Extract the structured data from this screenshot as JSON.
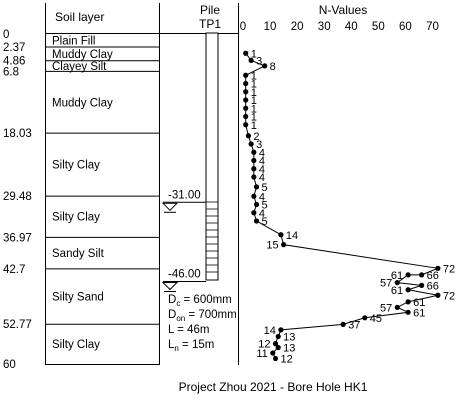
{
  "headers": {
    "soil": "Soil layer",
    "pile_line1": "Pile",
    "pile_line2": "TP1",
    "nvalues": "N-Values"
  },
  "depth_range": [
    0,
    60
  ],
  "depth_ticks": [
    "0",
    "2.37",
    "4.86",
    "6.8",
    "18.03",
    "29.48",
    "36.97",
    "42.7",
    "52.77",
    "60"
  ],
  "layers": [
    {
      "name": "Plain Fill",
      "top": 0,
      "bottom": 2.37
    },
    {
      "name": "Muddy Clay",
      "top": 2.37,
      "bottom": 4.86
    },
    {
      "name": "Clayey Silt",
      "top": 4.86,
      "bottom": 6.8
    },
    {
      "name": "Muddy Clay",
      "top": 6.8,
      "bottom": 18.03
    },
    {
      "name": "Silty Clay",
      "top": 18.03,
      "bottom": 29.48
    },
    {
      "name": "Silty Clay",
      "top": 29.48,
      "bottom": 36.97
    },
    {
      "name": "Sandy Silt",
      "top": 36.97,
      "bottom": 42.7
    },
    {
      "name": "Silty Sand",
      "top": 42.7,
      "bottom": 52.77
    },
    {
      "name": "Silty Clay",
      "top": 52.77,
      "bottom": 60
    }
  ],
  "n_axis": {
    "range": [
      0,
      75
    ],
    "ticks": [
      "0",
      "10",
      "20",
      "30",
      "40",
      "50",
      "60",
      "70"
    ]
  },
  "spt": [
    {
      "depth": 3.5,
      "n": 1,
      "label": "1",
      "side": "right"
    },
    {
      "depth": 4.8,
      "n": 3,
      "label": "3",
      "side": "right"
    },
    {
      "depth": 5.8,
      "n": 8,
      "label": "8",
      "side": "right"
    },
    {
      "depth": 7.5,
      "n": 1,
      "label": "1",
      "side": "right"
    },
    {
      "depth": 9.0,
      "n": 1,
      "label": "1",
      "side": "right"
    },
    {
      "depth": 10.5,
      "n": 1,
      "label": "1",
      "side": "right"
    },
    {
      "depth": 12.0,
      "n": 1,
      "label": "1",
      "side": "right"
    },
    {
      "depth": 13.5,
      "n": 1,
      "label": "1",
      "side": "right"
    },
    {
      "depth": 15.0,
      "n": 1,
      "label": "1",
      "side": "right"
    },
    {
      "depth": 16.5,
      "n": 1,
      "label": "1",
      "side": "right"
    },
    {
      "depth": 18.5,
      "n": 2,
      "label": "2",
      "side": "right"
    },
    {
      "depth": 20.0,
      "n": 3,
      "label": "3",
      "side": "right"
    },
    {
      "depth": 21.5,
      "n": 4,
      "label": "4",
      "side": "right"
    },
    {
      "depth": 23.0,
      "n": 4,
      "label": "4",
      "side": "right"
    },
    {
      "depth": 24.5,
      "n": 4,
      "label": "4",
      "side": "right"
    },
    {
      "depth": 26.0,
      "n": 4,
      "label": "4",
      "side": "right"
    },
    {
      "depth": 27.8,
      "n": 5,
      "label": "5",
      "side": "right"
    },
    {
      "depth": 29.5,
      "n": 4,
      "label": "4",
      "side": "right"
    },
    {
      "depth": 31.0,
      "n": 5,
      "label": "5",
      "side": "right"
    },
    {
      "depth": 32.5,
      "n": 4,
      "label": "4",
      "side": "right"
    },
    {
      "depth": 34.0,
      "n": 5,
      "label": "5",
      "side": "right"
    },
    {
      "depth": 36.5,
      "n": 14,
      "label": "14",
      "side": "right"
    },
    {
      "depth": 38.3,
      "n": 15,
      "label": "15",
      "side": "left"
    },
    {
      "depth": 42.6,
      "n": 72,
      "label": "72",
      "side": "right"
    },
    {
      "depth": 43.8,
      "n": 66,
      "label": "66",
      "side": "right"
    },
    {
      "depth": 43.8,
      "n": 61,
      "label": "61",
      "side": "left"
    },
    {
      "depth": 45.2,
      "n": 57,
      "label": "57",
      "side": "left"
    },
    {
      "depth": 45.7,
      "n": 66,
      "label": "66",
      "side": "right"
    },
    {
      "depth": 46.5,
      "n": 61,
      "label": "61",
      "side": "left"
    },
    {
      "depth": 47.5,
      "n": 72,
      "label": "72",
      "side": "right"
    },
    {
      "depth": 48.7,
      "n": 61,
      "label": "61",
      "side": "right"
    },
    {
      "depth": 49.7,
      "n": 57,
      "label": "57",
      "side": "left"
    },
    {
      "depth": 50.6,
      "n": 61,
      "label": "61",
      "side": "right"
    },
    {
      "depth": 51.6,
      "n": 45,
      "label": "45",
      "side": "right"
    },
    {
      "depth": 52.8,
      "n": 37,
      "label": "37",
      "side": "right"
    },
    {
      "depth": 53.8,
      "n": 14,
      "label": "14",
      "side": "left"
    },
    {
      "depth": 55.0,
      "n": 13,
      "label": "13",
      "side": "right"
    },
    {
      "depth": 56.3,
      "n": 12,
      "label": "12",
      "side": "left"
    },
    {
      "depth": 57.0,
      "n": 13,
      "label": "13",
      "side": "right"
    },
    {
      "depth": 58.0,
      "n": 11,
      "label": "11",
      "side": "left"
    },
    {
      "depth": 59.0,
      "n": 12,
      "label": "12",
      "side": "right"
    }
  ],
  "pile": {
    "level_markers": [
      {
        "label": "-31.00",
        "depth": 30.6
      },
      {
        "label": "-46.00",
        "depth": 45.0
      }
    ],
    "specs": [
      "Dc = 600mm",
      "Don = 700mm",
      "L = 46m",
      "Ln = 15m"
    ],
    "specs_structured": [
      {
        "symbol": "D",
        "sub": "c",
        "value": " = 600mm"
      },
      {
        "symbol": "D",
        "sub": "on",
        "value": " = 700mm"
      },
      {
        "symbol": "L",
        "sub": "",
        "value": " = 46m"
      },
      {
        "symbol": "L",
        "sub": "n",
        "value": " = 15m"
      }
    ]
  },
  "caption": "Project Zhou 2021 - Bore Hole HK1"
}
